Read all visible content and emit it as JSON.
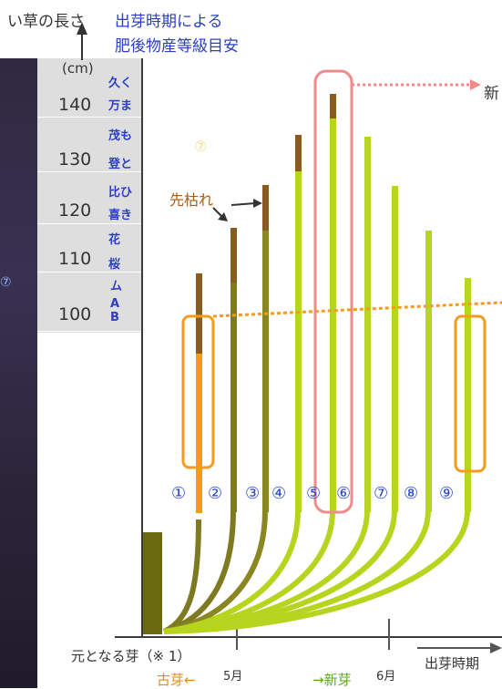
{
  "header": {
    "y_title": "い草の長さ",
    "grade_title_line1": "出芽時期による",
    "grade_title_line2": "肥後物産等級目安",
    "unit": "(cm)"
  },
  "y_ticks": [
    "140",
    "130",
    "120",
    "110",
    "100"
  ],
  "grades": [
    "久く",
    "万ま",
    "茂も",
    "登と",
    "比ひ",
    "喜き",
    "花",
    "桜",
    "ム",
    "A",
    "B"
  ],
  "annotations": {
    "tip_withered": "先枯れ",
    "new_label": "新",
    "circled_faint": "⑦",
    "left_edge_mark": "⑦"
  },
  "shoots": [
    "①",
    "②",
    "③",
    "④",
    "⑤",
    "⑥",
    "⑦",
    "⑧",
    "⑨"
  ],
  "x_axis": {
    "origin_label": "元となる芽（※ 1）",
    "old_label": "古芽←",
    "may": "5月",
    "new_label": "→新芽",
    "june": "6月",
    "title": "出芽時期"
  },
  "colors": {
    "old_shoot": "#7d7a22",
    "new_shoot": "#b7d51e",
    "withered_tip": "#8b5a1e",
    "orange_highlight": "#f39c1b",
    "pink_highlight": "#f08b8b",
    "grade_text": "#2c3fc4"
  }
}
